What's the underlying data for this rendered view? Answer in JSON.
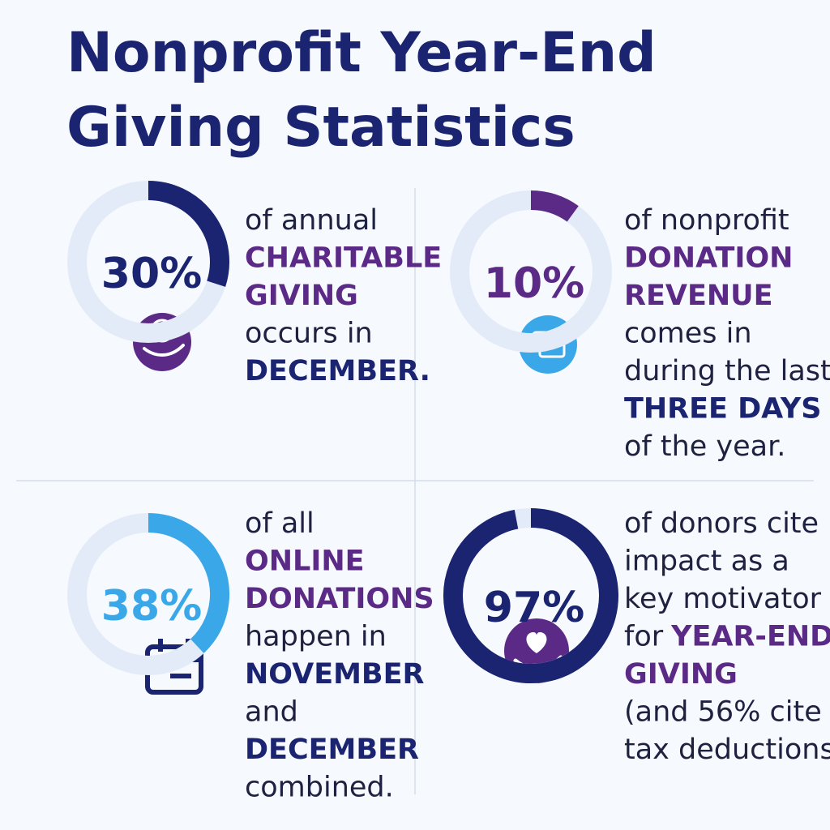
{
  "title": {
    "lines": [
      "Nonprofit Year-End",
      "Giving Statistics"
    ]
  },
  "stats": [
    {
      "value": 30,
      "label": "30%",
      "color": "#1b2470",
      "lines": [
        [
          {
            "text": "of annual"
          }
        ],
        [
          {
            "text": "CHARITABLE",
            "color": "#5b2a86"
          }
        ],
        [
          {
            "text": "GIVING",
            "color": "#5b2a86"
          }
        ],
        [
          {
            "text": "occurs in"
          }
        ],
        [
          {
            "text": "DECEMBER.",
            "color": "#1b2470"
          }
        ]
      ]
    },
    {
      "value": 10,
      "label": "10%",
      "color": "#5b2a86",
      "lines": [
        [
          {
            "text": "of nonprofit"
          }
        ],
        [
          {
            "text": "DONATION",
            "color": "#5b2a86"
          }
        ],
        [
          {
            "text": "REVENUE",
            "color": "#5b2a86"
          }
        ],
        [
          {
            "text": "comes in"
          }
        ],
        [
          {
            "text": "during the last"
          }
        ],
        [
          {
            "text": "THREE DAYS",
            "color": "#1b2470"
          }
        ],
        [
          {
            "text": "of the year."
          }
        ]
      ]
    },
    {
      "value": 38,
      "label": "38%",
      "color": "#3aa8e8",
      "lines": [
        [
          {
            "text": "of all"
          }
        ],
        [
          {
            "text": "ONLINE",
            "color": "#5b2a86"
          }
        ],
        [
          {
            "text": "DONATIONS",
            "color": "#5b2a86"
          }
        ],
        [
          {
            "text": "happen in"
          }
        ],
        [
          {
            "text": "NOVEMBER",
            "color": "#1b2470"
          }
        ],
        [
          {
            "text": "and"
          }
        ],
        [
          {
            "text": "DECEMBER",
            "color": "#1b2470"
          }
        ],
        [
          {
            "text": "combined."
          }
        ]
      ]
    },
    {
      "value": 97,
      "label": "97%",
      "color": "#1b2470",
      "lines": [
        [
          {
            "text": "of donors cite"
          }
        ],
        [
          {
            "text": "impact as a"
          }
        ],
        [
          {
            "text": "key motivator"
          }
        ],
        [
          {
            "text": "for"
          },
          {
            "text": "YEAR-END",
            "color": "#5b2a86"
          }
        ],
        [
          {
            "text": "GIVING",
            "color": "#5b2a86"
          }
        ],
        [
          {
            "text": "(and 56% cite"
          }
        ],
        [
          {
            "text": "tax deductions.)"
          }
        ]
      ]
    }
  ]
}
